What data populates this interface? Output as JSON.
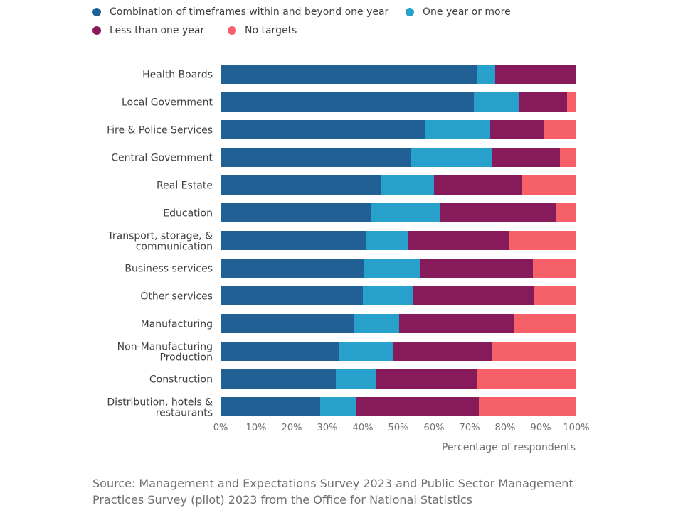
{
  "source": {
    "line1": "Source: Management and Expectations Survey 2023 and Public Sector Management",
    "line2": "Practices Survey (pilot) 2023 from the Office for National Statistics"
  },
  "chart_data": {
    "type": "bar",
    "orientation": "horizontal",
    "stacked": true,
    "title": "",
    "xlabel": "Percentage of respondents",
    "ylabel": "",
    "xlim": [
      0,
      100
    ],
    "x_ticks": [
      "0%",
      "10%",
      "20%",
      "30%",
      "40%",
      "50%",
      "60%",
      "70%",
      "80%",
      "90%",
      "100%"
    ],
    "grid": false,
    "legend_position": "top-left",
    "categories": [
      [
        "Health Boards"
      ],
      [
        "Local Government"
      ],
      [
        "Fire & Police Services"
      ],
      [
        "Central Government"
      ],
      [
        "Real Estate"
      ],
      [
        "Education"
      ],
      [
        "Transport, storage, &",
        "communication"
      ],
      [
        "Business services"
      ],
      [
        "Other services"
      ],
      [
        "Manufacturing"
      ],
      [
        "Non-Manufacturing",
        "Production"
      ],
      [
        "Construction"
      ],
      [
        "Distribution, hotels &",
        "restaurants"
      ]
    ],
    "series": [
      {
        "name": "Combination of timeframes within and beyond one year",
        "color": "#206095",
        "values": [
          72,
          71.2,
          57.6,
          53.6,
          45.2,
          42.4,
          40.8,
          40.4,
          40,
          37.4,
          33.4,
          32.4,
          28
        ]
      },
      {
        "name": "One year or more",
        "color": "#27A0CC",
        "values": [
          5.2,
          12.8,
          18.2,
          22.6,
          14.8,
          19.4,
          11.8,
          15.6,
          14.2,
          12.8,
          15.2,
          11.2,
          10.2
        ]
      },
      {
        "name": "Less than one year",
        "color": "#871A5B",
        "values": [
          22.8,
          13.4,
          15,
          19.2,
          24.8,
          32.6,
          28.4,
          31.8,
          34,
          32.4,
          27.6,
          28.4,
          34.4
        ]
      },
      {
        "name": "No targets",
        "color": "#F66068",
        "values": [
          0,
          2.6,
          9.2,
          4.6,
          15.2,
          5.6,
          19,
          12.2,
          11.8,
          17.4,
          23.8,
          28,
          27.4
        ]
      }
    ]
  }
}
